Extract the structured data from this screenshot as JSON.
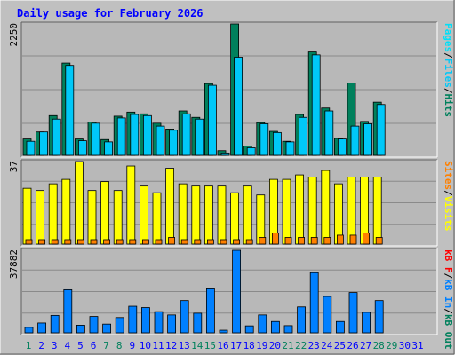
{
  "title": "Daily usage for February 2026",
  "colors": {
    "background": "#c0c0c0",
    "panel": "#b8b8b8",
    "title": "#0000ff",
    "hits": "#00805c",
    "files": "#00c8f8",
    "pages": "#00e0f8",
    "visits": "#ffff00",
    "sites": "#ff8000",
    "kbin": "#0080ff",
    "kbf": "#ff0000",
    "weekend_day": "#00805c",
    "weekday_day": "#0000ff",
    "grid": "#8a8a8a",
    "frame_dark": "#606060",
    "frame_light": "#ffffff"
  },
  "chart_data": [
    {
      "type": "bar",
      "panel": "hits-files-pages",
      "categories": [
        "1",
        "2",
        "3",
        "4",
        "5",
        "6",
        "7",
        "8",
        "9",
        "10",
        "11",
        "12",
        "13",
        "14",
        "15",
        "16",
        "17",
        "18",
        "19",
        "20",
        "21",
        "22",
        "23",
        "24",
        "25",
        "26",
        "27",
        "28",
        "29",
        "30",
        "31"
      ],
      "ymax_label": "2250",
      "ymax": 2250,
      "ylabel_parts": [
        "Pages",
        "/",
        "Files",
        "/",
        "Hits"
      ],
      "series": [
        {
          "name": "Hits",
          "values": [
            280,
            400,
            680,
            1580,
            280,
            570,
            270,
            670,
            740,
            710,
            550,
            450,
            760,
            650,
            1230,
            80,
            2250,
            160,
            560,
            410,
            240,
            700,
            1770,
            810,
            290,
            1240,
            580,
            910,
            0,
            0,
            0
          ]
        },
        {
          "name": "Files",
          "values": [
            240,
            400,
            620,
            1540,
            250,
            550,
            230,
            640,
            700,
            680,
            500,
            430,
            710,
            620,
            1200,
            40,
            1680,
            130,
            540,
            390,
            230,
            650,
            1720,
            760,
            280,
            500,
            540,
            870,
            0,
            0,
            0
          ]
        }
      ],
      "legend": "right"
    },
    {
      "type": "bar",
      "panel": "visits-sites",
      "categories": [
        "1",
        "2",
        "3",
        "4",
        "5",
        "6",
        "7",
        "8",
        "9",
        "10",
        "11",
        "12",
        "13",
        "14",
        "15",
        "16",
        "17",
        "18",
        "19",
        "20",
        "21",
        "22",
        "23",
        "24",
        "25",
        "26",
        "27",
        "28",
        "29",
        "30",
        "31"
      ],
      "ymax_label": "37",
      "ymax": 37,
      "ylabel_parts": [
        "Sites",
        "/",
        "Visits"
      ],
      "series": [
        {
          "name": "Visits",
          "values": [
            25,
            24,
            27,
            29,
            37,
            24,
            28,
            24,
            35,
            26,
            23,
            34,
            27,
            26,
            26,
            26,
            23,
            26,
            22,
            29,
            29,
            31,
            30,
            33,
            27,
            30,
            30,
            30,
            0,
            0,
            0
          ]
        },
        {
          "name": "Sites",
          "values": [
            2,
            2,
            2,
            2,
            2,
            2,
            2,
            2,
            2,
            2,
            2,
            3,
            2,
            2,
            2,
            2,
            2,
            2,
            3,
            5,
            3,
            3,
            3,
            3,
            4,
            4,
            5,
            3,
            0,
            0,
            0
          ]
        }
      ],
      "legend": "right"
    },
    {
      "type": "bar",
      "panel": "kbf-kbin",
      "categories": [
        "1",
        "2",
        "3",
        "4",
        "5",
        "6",
        "7",
        "8",
        "9",
        "10",
        "11",
        "12",
        "13",
        "14",
        "15",
        "16",
        "17",
        "18",
        "19",
        "20",
        "21",
        "22",
        "23",
        "24",
        "25",
        "26",
        "27",
        "28",
        "29",
        "30",
        "31"
      ],
      "ymax_label": "37882",
      "ymax": 37882,
      "ylabel_parts": [
        "kB F",
        "/",
        "kB In",
        "/",
        "kB Out"
      ],
      "series": [
        {
          "name": "kB In",
          "values": [
            2500,
            4500,
            8000,
            19800,
            3500,
            7500,
            4000,
            7000,
            12200,
            11600,
            9700,
            8200,
            14800,
            9000,
            20200,
            1200,
            37882,
            3200,
            8200,
            5200,
            3300,
            11900,
            27600,
            16700,
            5200,
            18500,
            9400,
            14800,
            0,
            0,
            0
          ]
        }
      ],
      "legend": "right"
    }
  ],
  "days": [
    {
      "label": "1",
      "weekend": true
    },
    {
      "label": "2",
      "weekend": false
    },
    {
      "label": "3",
      "weekend": false
    },
    {
      "label": "4",
      "weekend": false
    },
    {
      "label": "5",
      "weekend": false
    },
    {
      "label": "6",
      "weekend": false
    },
    {
      "label": "7",
      "weekend": true
    },
    {
      "label": "8",
      "weekend": true
    },
    {
      "label": "9",
      "weekend": false
    },
    {
      "label": "10",
      "weekend": false
    },
    {
      "label": "11",
      "weekend": false
    },
    {
      "label": "12",
      "weekend": false
    },
    {
      "label": "13",
      "weekend": false
    },
    {
      "label": "14",
      "weekend": true
    },
    {
      "label": "15",
      "weekend": true
    },
    {
      "label": "16",
      "weekend": false
    },
    {
      "label": "17",
      "weekend": false
    },
    {
      "label": "18",
      "weekend": false
    },
    {
      "label": "19",
      "weekend": false
    },
    {
      "label": "20",
      "weekend": false
    },
    {
      "label": "21",
      "weekend": true
    },
    {
      "label": "22",
      "weekend": true
    },
    {
      "label": "23",
      "weekend": false
    },
    {
      "label": "24",
      "weekend": false
    },
    {
      "label": "25",
      "weekend": false
    },
    {
      "label": "26",
      "weekend": false
    },
    {
      "label": "27",
      "weekend": false
    },
    {
      "label": "28",
      "weekend": true
    },
    {
      "label": "29",
      "weekend": true
    },
    {
      "label": "30",
      "weekend": false
    },
    {
      "label": "31",
      "weekend": false
    }
  ]
}
